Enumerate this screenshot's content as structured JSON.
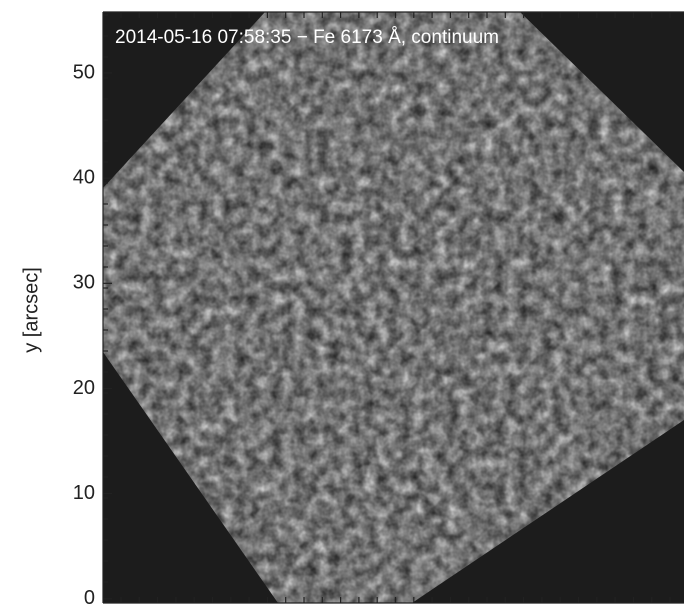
{
  "chart_data": {
    "type": "image",
    "title": "2014-05-16 07:58:35 − Fe 6173 Å, continuum",
    "ylabel": "y [arcsec]",
    "ylim": [
      -0.4,
      55.8
    ],
    "yticks": [
      0,
      10,
      20,
      30,
      40,
      50
    ]
  }
}
